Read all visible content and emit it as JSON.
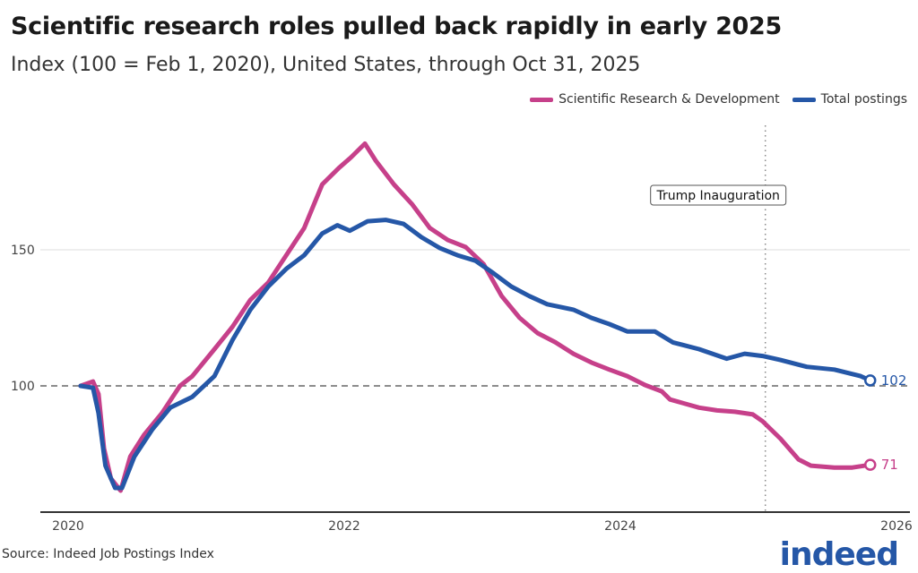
{
  "chart_data": {
    "type": "line",
    "title": "Scientific research roles pulled back rapidly in early 2025",
    "subtitle": "Index (100 = Feb 1, 2020), United States, through Oct 31, 2025",
    "xlabel": "",
    "ylabel": "",
    "x_ticks": [
      "2020",
      "2022",
      "2024",
      "2026"
    ],
    "y_ticks": [
      "100",
      "150"
    ],
    "xlim": [
      2019.92,
      2026.0
    ],
    "ylim": [
      54,
      196
    ],
    "grid": "horizontal",
    "legend_position": "top-right",
    "reference_line": {
      "value": 100,
      "style": "dashed"
    },
    "annotation": {
      "label": "Trump Inauguration",
      "x": 2025.05
    },
    "series": [
      {
        "name": "Scientific Research & Development",
        "color": "#c6408a",
        "end_label": "71",
        "x": [
          2020.09,
          2020.18,
          2020.22,
          2020.26,
          2020.31,
          2020.38,
          2020.45,
          2020.55,
          2020.68,
          2020.81,
          2020.9,
          2021.06,
          2021.19,
          2021.32,
          2021.45,
          2021.58,
          2021.71,
          2021.84,
          2021.96,
          2022.05,
          2022.15,
          2022.23,
          2022.36,
          2022.49,
          2022.62,
          2022.75,
          2022.88,
          2023.01,
          2023.14,
          2023.27,
          2023.4,
          2023.53,
          2023.66,
          2023.79,
          2023.92,
          2024.05,
          2024.18,
          2024.3,
          2024.36,
          2024.57,
          2024.7,
          2024.83,
          2024.96,
          2025.03,
          2025.16,
          2025.29,
          2025.38,
          2025.55,
          2025.68,
          2025.81
        ],
        "values": [
          100,
          101.6,
          97,
          77,
          66,
          61.5,
          74,
          82,
          90,
          100,
          103.6,
          113.5,
          121.7,
          131.6,
          138,
          148,
          158,
          174,
          180,
          184,
          189,
          182.6,
          174,
          166.8,
          158,
          153.6,
          151,
          144.7,
          133,
          125,
          119.4,
          116,
          111.8,
          108.6,
          106,
          103.6,
          100.3,
          98,
          95,
          92,
          91,
          90.5,
          89.5,
          87,
          80.6,
          73,
          70.7,
          70,
          70,
          71
        ]
      },
      {
        "name": "Total postings",
        "color": "#2557a7",
        "end_label": "102",
        "x": [
          2020.09,
          2020.18,
          2020.22,
          2020.27,
          2020.34,
          2020.39,
          2020.48,
          2020.61,
          2020.74,
          2020.9,
          2021.06,
          2021.19,
          2021.32,
          2021.45,
          2021.58,
          2021.71,
          2021.84,
          2021.95,
          2022.04,
          2022.17,
          2022.3,
          2022.43,
          2022.56,
          2022.69,
          2022.82,
          2022.95,
          2023.08,
          2023.21,
          2023.34,
          2023.47,
          2023.66,
          2023.79,
          2023.92,
          2024.05,
          2024.25,
          2024.38,
          2024.57,
          2024.77,
          2024.9,
          2025.03,
          2025.16,
          2025.35,
          2025.55,
          2025.74,
          2025.81
        ],
        "values": [
          100,
          99.3,
          90,
          70.7,
          62.5,
          62.5,
          74,
          84,
          92,
          96,
          103.6,
          116.8,
          128,
          136.5,
          143,
          148,
          156,
          159,
          157,
          160.5,
          161,
          159.5,
          154.6,
          150.7,
          148,
          146,
          141.4,
          136.5,
          133,
          130,
          128,
          125,
          122.7,
          120,
          120,
          116,
          113.5,
          110,
          111.8,
          111,
          109.5,
          107,
          106,
          103.6,
          102
        ]
      }
    ]
  },
  "source": "Source: Indeed Job Postings Index",
  "logo": "indeed"
}
